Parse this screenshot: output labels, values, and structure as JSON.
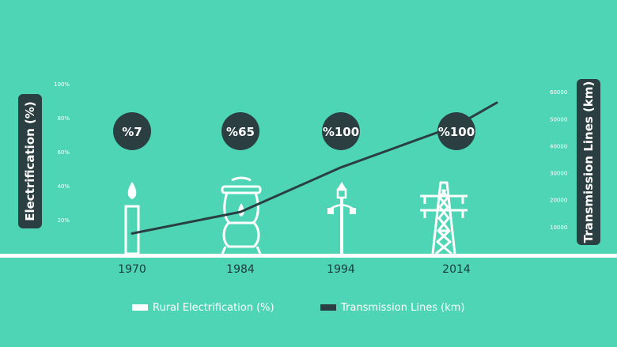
{
  "chart_data": {
    "type": "line",
    "ylabel_left": "Electrification (%)",
    "ylabel_right": "Transmission Lines (km)",
    "left_axis": {
      "ticks": [
        "20%",
        "40%",
        "60%",
        "80%",
        "100%"
      ],
      "tick_values": [
        20,
        40,
        60,
        80,
        100
      ],
      "range": [
        0,
        100
      ]
    },
    "right_axis": {
      "ticks": [
        "10000",
        "20000",
        "30000",
        "40000",
        "50000",
        "60000"
      ],
      "tick_values": [
        10000,
        20000,
        30000,
        40000,
        50000,
        60000
      ],
      "range": [
        0,
        63000
      ]
    },
    "categories": [
      "1970",
      "1984",
      "1994",
      "2014"
    ],
    "rural_electrification": [
      {
        "year": "1970",
        "label": "%7",
        "icon": "candle-icon"
      },
      {
        "year": "1984",
        "label": "%65",
        "icon": "gas-lamp-icon"
      },
      {
        "year": "1994",
        "label": "%100",
        "icon": "street-lamp-icon"
      },
      {
        "year": "2014",
        "label": "%100",
        "icon": "transmission-tower-icon"
      }
    ],
    "series": [
      {
        "name": "Transmission Lines (km)",
        "points": [
          {
            "x": 1970,
            "y": 7500
          },
          {
            "x": 1984,
            "y": 15500
          },
          {
            "x": 1994,
            "y": 32000
          },
          {
            "x": 2014,
            "y": 47500
          },
          {
            "x": 2022,
            "y": 56000
          }
        ]
      }
    ],
    "legend": {
      "position": "bottom",
      "items": [
        {
          "label": "Rural Electrification (%)",
          "color": "#ffffff"
        },
        {
          "label": "Transmission Lines (km)",
          "color": "#2b3f42"
        }
      ]
    }
  },
  "colors": {
    "background": "#4dd5b5",
    "dark": "#2b3f42",
    "white": "#ffffff"
  }
}
